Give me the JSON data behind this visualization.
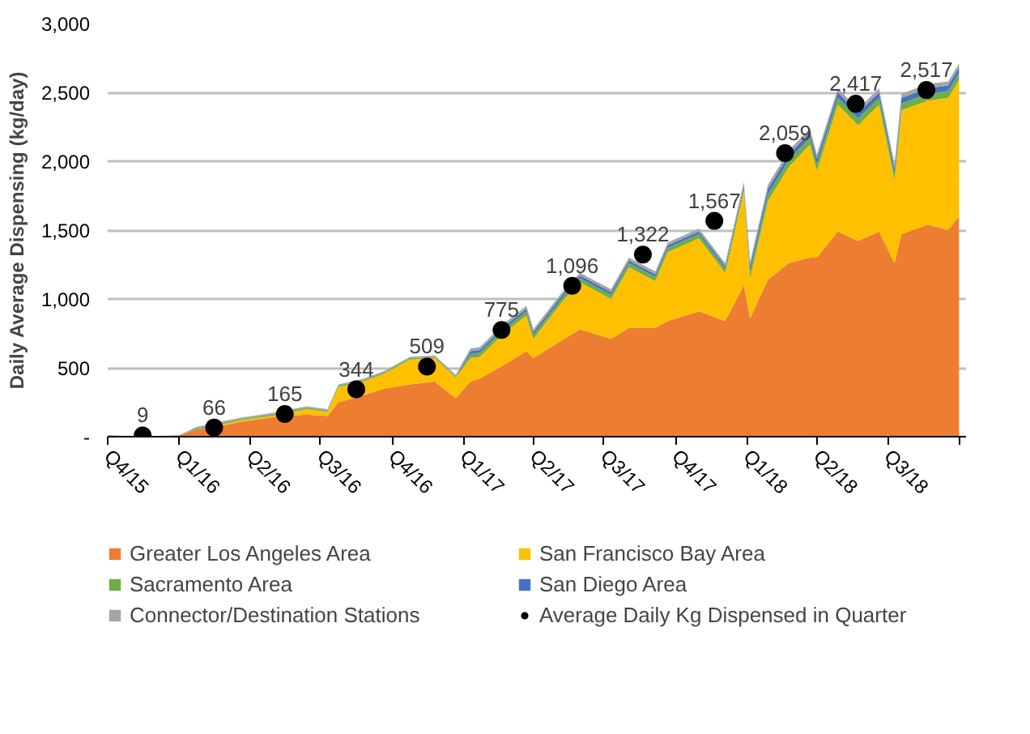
{
  "chart_data": {
    "type": "area",
    "stacked": true,
    "ylabel": "Daily Average Dispensing (kg/day)",
    "x": [
      "2015-10-01",
      "2015-11-15",
      "2016-01-01",
      "2016-01-23",
      "2016-02-25",
      "2016-03-22",
      "2016-04-28",
      "2016-06-13",
      "2016-07-10",
      "2016-07-24",
      "2016-08-25",
      "2016-09-22",
      "2016-10-24",
      "2016-11-25",
      "2016-12-22",
      "2017-01-10",
      "2017-01-22",
      "2017-02-22",
      "2017-03-23",
      "2017-04-01",
      "2017-05-11",
      "2017-05-31",
      "2017-07-10",
      "2017-08-02",
      "2017-09-05",
      "2017-09-21",
      "2017-10-31",
      "2017-12-04",
      "2017-12-28",
      "2018-01-05",
      "2018-01-28",
      "2018-02-24",
      "2018-03-23",
      "2018-04-01",
      "2018-04-28",
      "2018-05-24",
      "2018-06-20",
      "2018-07-10",
      "2018-07-19",
      "2018-08-22",
      "2018-09-17",
      "2018-10-01"
    ],
    "series": [
      {
        "name": "Greater Los Angeles Area",
        "color": "#ed7d31",
        "values": [
          10,
          0,
          10,
          50,
          80,
          110,
          140,
          160,
          150,
          250,
          300,
          350,
          380,
          400,
          280,
          400,
          420,
          520,
          620,
          570,
          710,
          780,
          710,
          790,
          790,
          840,
          910,
          840,
          1100,
          860,
          1140,
          1260,
          1300,
          1300,
          1490,
          1420,
          1490,
          1260,
          1470,
          1540,
          1500,
          1600
        ]
      },
      {
        "name": "San Francisco Bay Area",
        "color": "#ffc000",
        "values": [
          0,
          0,
          0,
          0,
          10,
          10,
          10,
          40,
          30,
          110,
          100,
          110,
          180,
          170,
          150,
          170,
          160,
          230,
          260,
          140,
          290,
          340,
          290,
          440,
          340,
          500,
          530,
          350,
          680,
          290,
          570,
          700,
          820,
          630,
          920,
          840,
          920,
          600,
          900,
          900,
          960,
          990
        ]
      },
      {
        "name": "Sacramento Area",
        "color": "#70ad47",
        "values": [
          0,
          0,
          0,
          10,
          10,
          10,
          10,
          10,
          10,
          10,
          10,
          10,
          10,
          10,
          10,
          30,
          30,
          30,
          30,
          30,
          30,
          30,
          30,
          30,
          30,
          30,
          30,
          30,
          30,
          50,
          50,
          50,
          50,
          50,
          50,
          50,
          50,
          50,
          50,
          50,
          50,
          50
        ]
      },
      {
        "name": "San Diego Area",
        "color": "#4472c4",
        "values": [
          0,
          0,
          0,
          0,
          0,
          0,
          0,
          0,
          0,
          0,
          0,
          0,
          0,
          0,
          0,
          20,
          20,
          20,
          20,
          20,
          20,
          20,
          20,
          20,
          20,
          20,
          20,
          20,
          20,
          40,
          40,
          40,
          40,
          40,
          40,
          40,
          40,
          40,
          40,
          40,
          40,
          40
        ]
      },
      {
        "name": "Connector/Destination Stations",
        "color": "#a5a5a5",
        "values": [
          0,
          0,
          0,
          10,
          10,
          10,
          10,
          10,
          10,
          10,
          10,
          10,
          10,
          10,
          10,
          20,
          20,
          20,
          20,
          20,
          20,
          20,
          20,
          20,
          20,
          20,
          20,
          20,
          20,
          30,
          30,
          30,
          30,
          30,
          30,
          30,
          30,
          30,
          30,
          30,
          30,
          30
        ]
      },
      {
        "name": "Average Daily Kg Dispensed in Quarter",
        "type": "scatter",
        "marker": "circle",
        "color": "#000000",
        "x": [
          "2015-11-15",
          "2016-02-15",
          "2016-05-16",
          "2016-08-16",
          "2016-11-15",
          "2017-02-19",
          "2017-05-21",
          "2017-08-20",
          "2017-11-20",
          "2018-02-19",
          "2018-05-21",
          "2018-08-20"
        ],
        "values": [
          9,
          66,
          165,
          344,
          509,
          775,
          1096,
          1322,
          1567,
          2059,
          2417,
          2517
        ],
        "value_labels": [
          "9",
          "66",
          "165",
          "344",
          "509",
          "775",
          "1,096",
          "1,322",
          "1,567",
          "2,059",
          "2,417",
          "2,517"
        ]
      }
    ],
    "xlim": [
      "2015-10-01",
      "2018-10-10"
    ],
    "xticks": [
      {
        "value": "2015-10-01",
        "label": "Q4/15"
      },
      {
        "value": "2016-01-01",
        "label": "Q1/16"
      },
      {
        "value": "2016-04-01",
        "label": "Q2/16"
      },
      {
        "value": "2016-07-01",
        "label": "Q3/16"
      },
      {
        "value": "2016-10-01",
        "label": "Q4/16"
      },
      {
        "value": "2017-01-01",
        "label": "Q1/17"
      },
      {
        "value": "2017-04-01",
        "label": "Q2/17"
      },
      {
        "value": "2017-07-01",
        "label": "Q3/17"
      },
      {
        "value": "2017-10-01",
        "label": "Q4/17"
      },
      {
        "value": "2018-01-01",
        "label": "Q1/18"
      },
      {
        "value": "2018-04-01",
        "label": "Q2/18"
      },
      {
        "value": "2018-07-01",
        "label": "Q3/18"
      },
      {
        "value": "2018-10-01",
        "label": null
      }
    ],
    "ylim": [
      0,
      3000
    ],
    "yticks": [
      {
        "value": 0,
        "label": "-"
      },
      500,
      {
        "value": 1000,
        "label": "1,000"
      },
      {
        "value": 1500,
        "label": "1,500"
      },
      {
        "value": 2000,
        "label": "2,000"
      },
      {
        "value": 2500,
        "label": "2,500"
      },
      {
        "value": 3000,
        "label": "3,000"
      }
    ],
    "grid": "y",
    "legend": "bottom"
  }
}
